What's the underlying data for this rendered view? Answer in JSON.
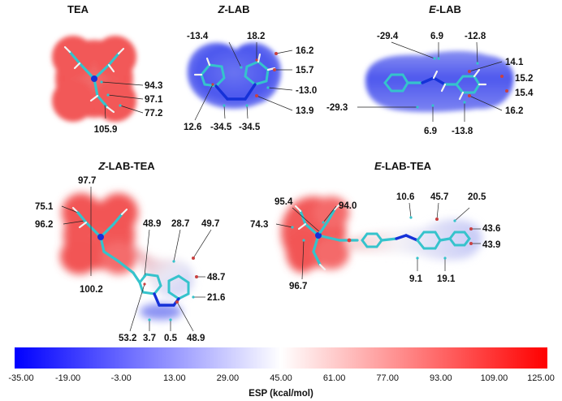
{
  "panels": {
    "tea": {
      "title": "TEA",
      "labels": [
        "94.3",
        "97.1",
        "77.2",
        "105.9"
      ],
      "surface_color": "#f25a5a"
    },
    "z_lab": {
      "title_prefix": "Z",
      "title_suffix": "-LAB",
      "labels": [
        "-13.4",
        "18.2",
        "16.2",
        "15.7",
        "-13.0",
        "13.9",
        "12.6",
        "-34.5",
        "-34.5"
      ],
      "surface_color": "#4d57ee"
    },
    "e_lab": {
      "title_prefix": "E",
      "title_suffix": "-LAB",
      "labels": [
        "-29.4",
        "6.9",
        "-12.8",
        "14.1",
        "15.2",
        "15.4",
        "16.2",
        "-29.3",
        "6.9",
        "-13.8"
      ],
      "surface_color": "#5a62ec"
    },
    "z_lab_tea": {
      "title_prefix": "Z",
      "title_suffix": "-LAB-TEA",
      "labels": [
        "97.7",
        "75.1",
        "96.2",
        "48.9",
        "28.7",
        "49.7",
        "48.7",
        "21.6",
        "100.2",
        "53.2",
        "3.7",
        "0.5",
        "48.9"
      ]
    },
    "e_lab_tea": {
      "title_prefix": "E",
      "title_suffix": "-LAB-TEA",
      "labels": [
        "95.4",
        "94.0",
        "74.3",
        "96.7",
        "10.6",
        "45.7",
        "20.5",
        "43.6",
        "43.9",
        "9.1",
        "19.1"
      ]
    }
  },
  "colorbar": {
    "ticks": [
      "-35.00",
      "-19.00",
      "-3.00",
      "13.00",
      "29.00",
      "45.00",
      "61.00",
      "77.00",
      "93.00",
      "109.00",
      "125.00"
    ],
    "min": -35,
    "max": 125,
    "title": "ESP (kcal/mol)",
    "colors": {
      "low": "#0000ff",
      "mid": "#ffffff",
      "high": "#ff0000"
    }
  }
}
